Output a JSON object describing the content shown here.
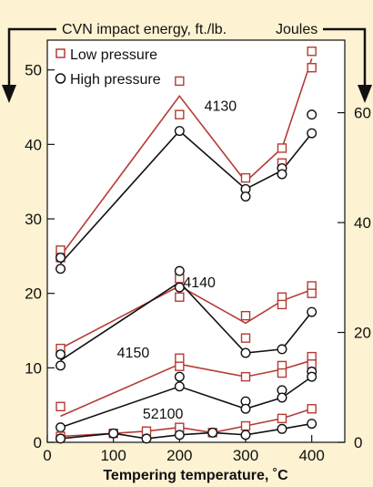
{
  "chart_data": {
    "type": "line",
    "left_axis_label": "CVN impact energy, ft./lb.",
    "right_axis_label": "Joules",
    "xlabel": "Tempering temperature, ˚C",
    "xlim": [
      0,
      450
    ],
    "ylim": [
      0,
      54
    ],
    "x_ticks": [
      "0",
      "100",
      "200",
      "300",
      "400"
    ],
    "y_ticks_left": [
      "0",
      "10",
      "20",
      "30",
      "40",
      "50"
    ],
    "y_ticks_right": [
      "0",
      "20",
      "40",
      "60"
    ],
    "legend": {
      "position": "top-left",
      "low_label": "Low pressure",
      "high_label": "High pressure"
    },
    "colors": {
      "low": "#b53a34",
      "high": "#111111",
      "background": "#fdf2d2"
    },
    "steels": [
      {
        "name": "4130",
        "low_line": {
          "x": [
            20,
            200,
            300,
            355,
            400
          ],
          "y": [
            25.0,
            46.5,
            35.0,
            39.5,
            51.5
          ]
        },
        "low_points": [
          [
            20,
            25.8
          ],
          [
            20,
            24.8
          ],
          [
            200,
            48.5
          ],
          [
            200,
            44.0
          ],
          [
            300,
            35.5
          ],
          [
            355,
            39.5
          ],
          [
            355,
            37.5
          ],
          [
            400,
            52.5
          ],
          [
            400,
            50.3
          ]
        ],
        "high_line": {
          "x": [
            20,
            200,
            300,
            355,
            400
          ],
          "y": [
            24.0,
            41.8,
            34.0,
            36.5,
            41.5
          ]
        },
        "high_points": [
          [
            20,
            24.8
          ],
          [
            20,
            23.3
          ],
          [
            200,
            41.8
          ],
          [
            300,
            34.0
          ],
          [
            300,
            33.0
          ],
          [
            355,
            36.8
          ],
          [
            355,
            36.0
          ],
          [
            400,
            44.0
          ],
          [
            400,
            41.5
          ]
        ]
      },
      {
        "name": "4140",
        "low_line": {
          "x": [
            20,
            200,
            300,
            355,
            400
          ],
          "y": [
            12.6,
            21.0,
            16.0,
            19.0,
            20.5
          ]
        },
        "low_points": [
          [
            20,
            12.6
          ],
          [
            200,
            22.0
          ],
          [
            200,
            19.5
          ],
          [
            300,
            17.0
          ],
          [
            300,
            14.0
          ],
          [
            355,
            19.5
          ],
          [
            355,
            18.5
          ],
          [
            400,
            21.0
          ],
          [
            400,
            20.0
          ]
        ],
        "high_line": {
          "x": [
            20,
            200,
            300,
            355,
            400
          ],
          "y": [
            11.0,
            21.5,
            12.0,
            12.5,
            17.5
          ]
        },
        "high_points": [
          [
            20,
            11.8
          ],
          [
            20,
            10.3
          ],
          [
            200,
            23.0
          ],
          [
            200,
            20.8
          ],
          [
            300,
            12.0
          ],
          [
            355,
            12.5
          ],
          [
            400,
            17.5
          ]
        ]
      },
      {
        "name": "4150",
        "low_line": {
          "x": [
            20,
            200,
            300,
            355,
            400
          ],
          "y": [
            3.5,
            10.5,
            8.8,
            9.8,
            11.0
          ]
        },
        "low_points": [
          [
            20,
            4.8
          ],
          [
            200,
            11.3
          ],
          [
            200,
            10.2
          ],
          [
            300,
            8.8
          ],
          [
            355,
            10.3
          ],
          [
            355,
            9.3
          ],
          [
            400,
            11.5
          ],
          [
            400,
            10.5
          ]
        ],
        "high_line": {
          "x": [
            20,
            200,
            300,
            355,
            400
          ],
          "y": [
            2.0,
            7.5,
            4.5,
            6.0,
            8.8
          ]
        },
        "high_points": [
          [
            20,
            2.0
          ],
          [
            200,
            8.8
          ],
          [
            200,
            7.5
          ],
          [
            300,
            5.5
          ],
          [
            300,
            4.5
          ],
          [
            355,
            7.0
          ],
          [
            355,
            6.0
          ],
          [
            400,
            9.5
          ],
          [
            400,
            8.8
          ]
        ]
      },
      {
        "name": "52100",
        "low_line": {
          "x": [
            20,
            100,
            150,
            200,
            250,
            300,
            355,
            400
          ],
          "y": [
            0.8,
            1.2,
            1.5,
            2.0,
            1.3,
            2.2,
            3.2,
            4.5
          ]
        },
        "low_points": [
          [
            20,
            0.8
          ],
          [
            100,
            1.2
          ],
          [
            150,
            1.5
          ],
          [
            200,
            2.0
          ],
          [
            250,
            1.3
          ],
          [
            300,
            2.2
          ],
          [
            355,
            3.2
          ],
          [
            400,
            4.5
          ]
        ],
        "high_line": {
          "x": [
            20,
            100,
            150,
            200,
            250,
            300,
            355,
            400
          ],
          "y": [
            0.5,
            1.2,
            0.5,
            1.0,
            1.3,
            1.0,
            1.8,
            2.5
          ]
        },
        "high_points": [
          [
            20,
            0.5
          ],
          [
            100,
            1.2
          ],
          [
            150,
            0.5
          ],
          [
            200,
            1.0
          ],
          [
            250,
            1.3
          ],
          [
            300,
            1.0
          ],
          [
            355,
            1.8
          ],
          [
            400,
            2.5
          ]
        ]
      }
    ],
    "steel_label_anchors": [
      {
        "name": "4130",
        "x": 262,
        "y": 44.5
      },
      {
        "name": "4140",
        "x": 230,
        "y": 20.8
      },
      {
        "name": "4150",
        "x": 130,
        "y": 11.4
      },
      {
        "name": "52100",
        "x": 175,
        "y": 3.2
      }
    ]
  }
}
